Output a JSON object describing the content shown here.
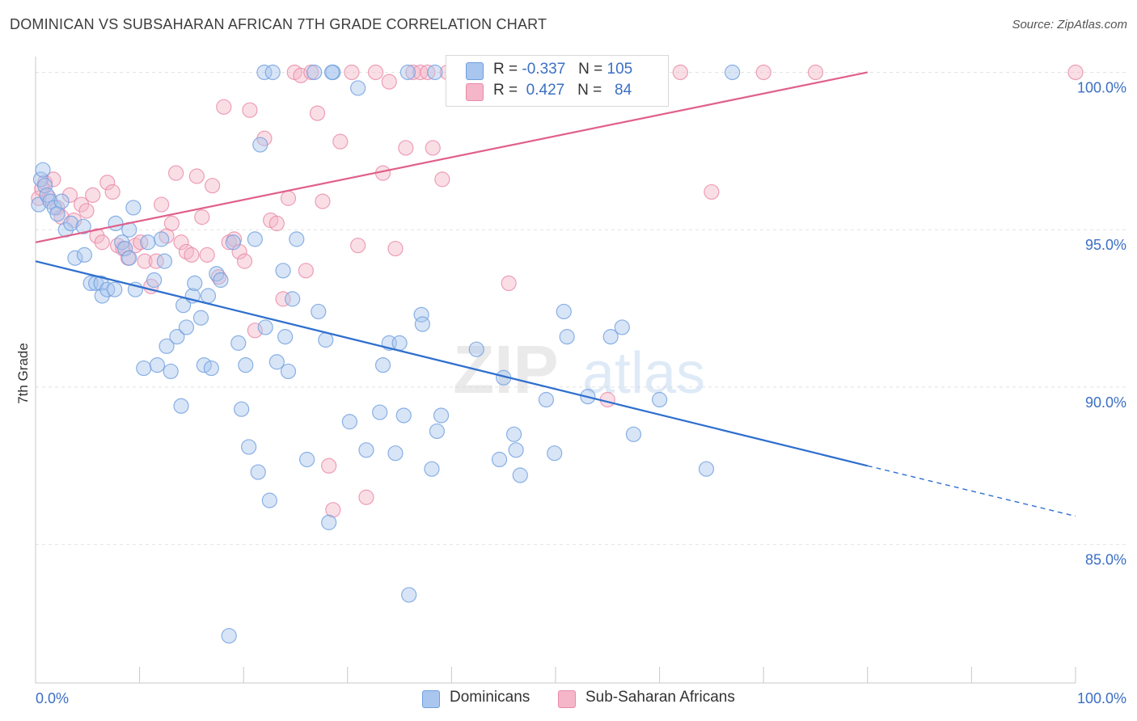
{
  "header": {
    "title": "DOMINICAN VS SUBSAHARAN AFRICAN 7TH GRADE CORRELATION CHART",
    "source": "Source: ZipAtlas.com"
  },
  "watermark": {
    "zip": "ZIP",
    "atlas": "atlas"
  },
  "legend": {
    "rows": [
      {
        "r_label": "R =",
        "r_value": "-0.337",
        "n_label": "N =",
        "n_value": "105",
        "color": "#a9c6ee"
      },
      {
        "r_label": "R =",
        "r_value": "0.427",
        "n_label": "N =",
        "n_value": "84",
        "color": "#f4b6c8"
      }
    ]
  },
  "bottom_legend": [
    {
      "label": "Dominicans",
      "color": "#a9c6ee"
    },
    {
      "label": "Sub-Saharan Africans",
      "color": "#f4b6c8"
    }
  ],
  "colors": {
    "blue_fill": "#a9c6ee",
    "blue_stroke": "#6f9fdf",
    "blue_line": "#2f6fce",
    "pink_fill": "#f4b6c8",
    "pink_stroke": "#e98aa8",
    "pink_line": "#e0608a",
    "grid": "#e2e2e2",
    "tick_label": "#3b6fc4"
  },
  "chart_data": {
    "type": "scatter",
    "title": "DOMINICAN VS SUBSAHARAN AFRICAN 7TH GRADE CORRELATION CHART",
    "xlabel": "",
    "ylabel": "7th Grade",
    "xlim": [
      0,
      100
    ],
    "ylim": [
      80.6,
      100.5
    ],
    "x_tick_labels": [
      "0.0%",
      "100.0%"
    ],
    "y_ticks": [
      100,
      95,
      90,
      85
    ],
    "y_tick_labels": [
      "100.0%",
      "95.0%",
      "90.0%",
      "85.0%"
    ],
    "grid": true,
    "legend_position": "top-center",
    "series": [
      {
        "name": "Dominicans",
        "r": -0.337,
        "n": 105,
        "trend": {
          "x": [
            0,
            80,
            100
          ],
          "y": [
            94.0,
            87.5,
            85.9
          ],
          "dashed_after_x": 80
        },
        "points": [
          [
            0.3,
            95.8
          ],
          [
            0.5,
            96.6
          ],
          [
            0.7,
            96.9
          ],
          [
            0.9,
            96.4
          ],
          [
            1.1,
            96.1
          ],
          [
            1.4,
            95.9
          ],
          [
            1.8,
            95.7
          ],
          [
            2.1,
            95.5
          ],
          [
            2.5,
            95.9
          ],
          [
            2.9,
            95.0
          ],
          [
            3.4,
            95.2
          ],
          [
            3.8,
            94.1
          ],
          [
            4.6,
            95.1
          ],
          [
            4.7,
            94.2
          ],
          [
            5.3,
            93.3
          ],
          [
            5.8,
            93.3
          ],
          [
            6.3,
            93.3
          ],
          [
            6.4,
            92.9
          ],
          [
            6.9,
            93.1
          ],
          [
            7.6,
            93.1
          ],
          [
            7.7,
            95.2
          ],
          [
            8.3,
            94.6
          ],
          [
            8.6,
            94.4
          ],
          [
            9.0,
            94.1
          ],
          [
            9.4,
            95.7
          ],
          [
            9.6,
            93.1
          ],
          [
            9.0,
            95.0
          ],
          [
            10.4,
            90.6
          ],
          [
            10.8,
            94.6
          ],
          [
            11.4,
            93.4
          ],
          [
            11.7,
            90.7
          ],
          [
            12.1,
            94.7
          ],
          [
            12.4,
            94.0
          ],
          [
            12.6,
            91.3
          ],
          [
            13.0,
            90.5
          ],
          [
            13.6,
            91.6
          ],
          [
            14.0,
            89.4
          ],
          [
            14.2,
            92.6
          ],
          [
            14.5,
            91.9
          ],
          [
            15.1,
            92.9
          ],
          [
            15.3,
            93.3
          ],
          [
            15.9,
            92.2
          ],
          [
            16.2,
            90.7
          ],
          [
            16.6,
            92.9
          ],
          [
            16.9,
            90.6
          ],
          [
            17.4,
            93.6
          ],
          [
            17.8,
            93.4
          ],
          [
            18.6,
            82.1
          ],
          [
            19.0,
            94.6
          ],
          [
            19.5,
            91.4
          ],
          [
            19.8,
            89.3
          ],
          [
            20.2,
            90.7
          ],
          [
            20.5,
            88.1
          ],
          [
            21.1,
            94.7
          ],
          [
            21.4,
            87.3
          ],
          [
            21.6,
            97.7
          ],
          [
            22.1,
            91.9
          ],
          [
            22.5,
            86.4
          ],
          [
            23.2,
            90.8
          ],
          [
            23.8,
            93.7
          ],
          [
            24.0,
            91.6
          ],
          [
            24.3,
            90.5
          ],
          [
            24.7,
            92.8
          ],
          [
            25.1,
            94.7
          ],
          [
            26.1,
            87.7
          ],
          [
            27.2,
            92.4
          ],
          [
            27.9,
            91.5
          ],
          [
            28.2,
            85.7
          ],
          [
            28.6,
            100.0
          ],
          [
            30.2,
            88.9
          ],
          [
            31.0,
            99.5
          ],
          [
            31.8,
            88.0
          ],
          [
            33.1,
            89.2
          ],
          [
            33.4,
            90.7
          ],
          [
            34.0,
            91.4
          ],
          [
            34.6,
            87.9
          ],
          [
            35.0,
            91.4
          ],
          [
            35.4,
            89.1
          ],
          [
            35.8,
            100.0
          ],
          [
            35.9,
            83.4
          ],
          [
            37.1,
            92.3
          ],
          [
            37.2,
            92.0
          ],
          [
            38.1,
            87.4
          ],
          [
            38.6,
            88.6
          ],
          [
            39.0,
            89.1
          ],
          [
            26.8,
            100.0
          ],
          [
            22.0,
            100.0
          ],
          [
            22.8,
            100.0
          ],
          [
            28.5,
            100.0
          ],
          [
            38.4,
            100.0
          ],
          [
            40.4,
            100.0
          ],
          [
            42.4,
            91.2
          ],
          [
            44.6,
            87.7
          ],
          [
            45.0,
            90.3
          ],
          [
            46.0,
            88.5
          ],
          [
            46.2,
            88.0
          ],
          [
            46.6,
            87.2
          ],
          [
            49.1,
            89.6
          ],
          [
            49.9,
            87.9
          ],
          [
            55.3,
            91.6
          ],
          [
            50.8,
            92.4
          ],
          [
            51.1,
            91.6
          ],
          [
            53.1,
            89.7
          ],
          [
            56.4,
            91.9
          ],
          [
            57.5,
            88.5
          ],
          [
            60.0,
            89.6
          ],
          [
            64.5,
            87.4
          ],
          [
            67.0,
            100.0
          ]
        ]
      },
      {
        "name": "Sub-Saharan Africans",
        "r": 0.427,
        "n": 84,
        "trend": {
          "x": [
            0,
            80
          ],
          "y": [
            94.6,
            100.0
          ]
        },
        "points": [
          [
            0.3,
            96.0
          ],
          [
            0.6,
            96.3
          ],
          [
            0.9,
            96.5
          ],
          [
            1.3,
            96.0
          ],
          [
            1.7,
            96.6
          ],
          [
            2.1,
            95.7
          ],
          [
            2.5,
            95.4
          ],
          [
            3.3,
            96.1
          ],
          [
            3.7,
            95.3
          ],
          [
            4.4,
            95.8
          ],
          [
            4.9,
            95.6
          ],
          [
            5.5,
            96.1
          ],
          [
            5.9,
            94.8
          ],
          [
            6.4,
            94.6
          ],
          [
            6.9,
            96.5
          ],
          [
            7.4,
            96.2
          ],
          [
            7.9,
            94.5
          ],
          [
            8.4,
            94.4
          ],
          [
            8.9,
            94.1
          ],
          [
            9.6,
            94.5
          ],
          [
            10.1,
            94.6
          ],
          [
            10.5,
            94.0
          ],
          [
            11.1,
            93.2
          ],
          [
            11.6,
            94.0
          ],
          [
            12.1,
            95.8
          ],
          [
            12.6,
            94.8
          ],
          [
            13.1,
            95.2
          ],
          [
            13.5,
            96.8
          ],
          [
            14.0,
            94.6
          ],
          [
            14.5,
            94.3
          ],
          [
            15.0,
            94.2
          ],
          [
            15.5,
            96.7
          ],
          [
            16.0,
            95.4
          ],
          [
            16.5,
            94.2
          ],
          [
            17.0,
            96.4
          ],
          [
            17.6,
            93.5
          ],
          [
            18.1,
            98.9
          ],
          [
            18.6,
            94.6
          ],
          [
            19.1,
            94.7
          ],
          [
            19.6,
            94.3
          ],
          [
            20.1,
            94.0
          ],
          [
            20.6,
            98.8
          ],
          [
            21.1,
            91.8
          ],
          [
            22.0,
            97.9
          ],
          [
            22.6,
            95.3
          ],
          [
            23.2,
            95.2
          ],
          [
            23.8,
            92.8
          ],
          [
            24.3,
            96.0
          ],
          [
            24.9,
            100.0
          ],
          [
            25.5,
            99.9
          ],
          [
            26.0,
            93.7
          ],
          [
            26.5,
            100.0
          ],
          [
            27.1,
            98.7
          ],
          [
            27.6,
            95.9
          ],
          [
            28.2,
            87.5
          ],
          [
            28.6,
            86.1
          ],
          [
            29.3,
            97.8
          ],
          [
            30.4,
            100.0
          ],
          [
            31.0,
            94.5
          ],
          [
            31.8,
            86.5
          ],
          [
            32.7,
            100.0
          ],
          [
            33.4,
            96.8
          ],
          [
            34.0,
            99.7
          ],
          [
            34.6,
            94.4
          ],
          [
            35.6,
            97.6
          ],
          [
            36.3,
            100.0
          ],
          [
            37.0,
            100.0
          ],
          [
            37.7,
            100.0
          ],
          [
            38.2,
            97.6
          ],
          [
            39.1,
            96.6
          ],
          [
            39.6,
            100.0
          ],
          [
            40.4,
            100.0
          ],
          [
            42.0,
            100.0
          ],
          [
            44.3,
            100.0
          ],
          [
            45.5,
            93.3
          ],
          [
            47.0,
            100.0
          ],
          [
            49.0,
            100.0
          ],
          [
            52.0,
            100.0
          ],
          [
            55.0,
            89.6
          ],
          [
            62.0,
            100.0
          ],
          [
            65.0,
            96.2
          ],
          [
            70.0,
            100.0
          ],
          [
            75.0,
            100.0
          ],
          [
            100.0,
            100.0
          ]
        ]
      }
    ]
  }
}
